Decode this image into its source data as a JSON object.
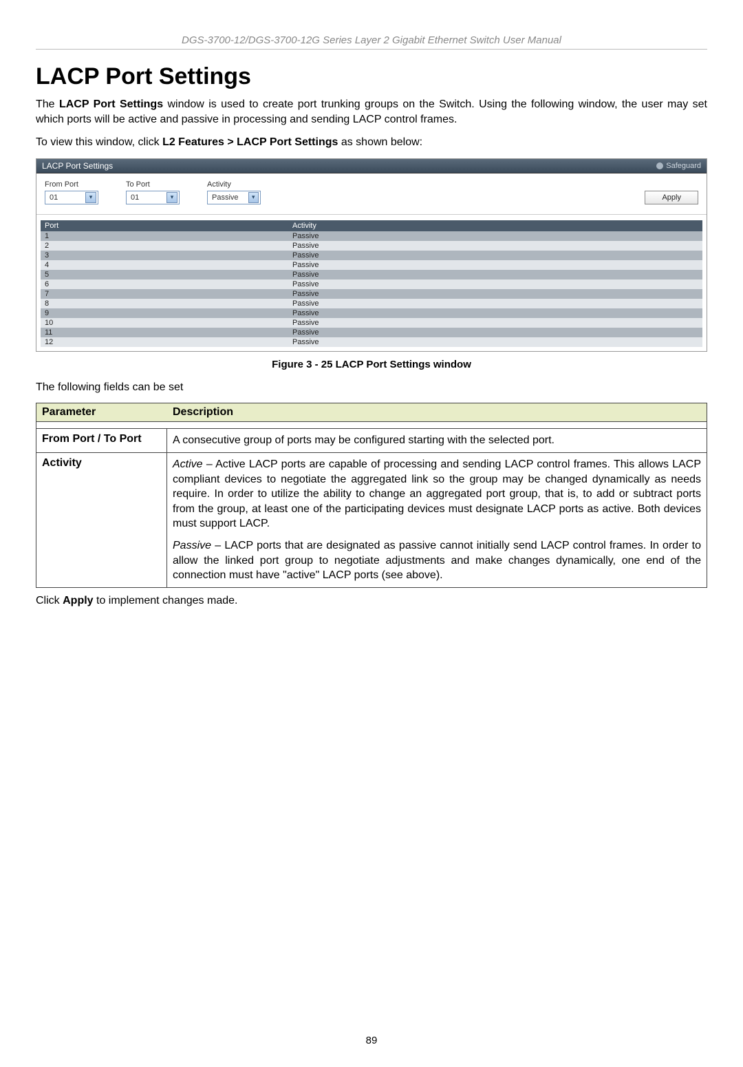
{
  "manual_header": "DGS-3700-12/DGS-3700-12G Series Layer 2 Gigabit Ethernet Switch User Manual",
  "page_title": "LACP Port Settings",
  "intro_para_prefix": "The ",
  "intro_para_bold": "LACP Port Settings",
  "intro_para_suffix": " window is used to create port trunking groups on the Switch. Using the following window, the user may set which ports will be active and passive in processing and sending LACP control frames.",
  "nav_para_prefix": "To view this window, click ",
  "nav_para_bold": "L2 Features > LACP Port Settings",
  "nav_para_suffix": " as shown below:",
  "screenshot": {
    "title": "LACP Port Settings",
    "safeguard": "Safeguard",
    "from_port_label": "From Port",
    "to_port_label": "To Port",
    "activity_label": "Activity",
    "from_port_value": "01",
    "to_port_value": "01",
    "activity_value": "Passive",
    "apply_label": "Apply",
    "th_port": "Port",
    "th_activity": "Activity",
    "rows": [
      {
        "port": "1",
        "activity": "Passive"
      },
      {
        "port": "2",
        "activity": "Passive"
      },
      {
        "port": "3",
        "activity": "Passive"
      },
      {
        "port": "4",
        "activity": "Passive"
      },
      {
        "port": "5",
        "activity": "Passive"
      },
      {
        "port": "6",
        "activity": "Passive"
      },
      {
        "port": "7",
        "activity": "Passive"
      },
      {
        "port": "8",
        "activity": "Passive"
      },
      {
        "port": "9",
        "activity": "Passive"
      },
      {
        "port": "10",
        "activity": "Passive"
      },
      {
        "port": "11",
        "activity": "Passive"
      },
      {
        "port": "12",
        "activity": "Passive"
      }
    ]
  },
  "figure_caption": "Figure 3 - 25 LACP Port Settings window",
  "following_text": "The following fields can be set",
  "param_header_left": "Parameter",
  "param_header_right": "Description",
  "param_rows": {
    "r0_left": "From Port / To Port",
    "r0_right": "A consecutive group of ports may be configured starting with the selected port.",
    "r1_left": "Activity",
    "r1_active_label": "Active",
    "r1_active_text": " – Active LACP ports are capable of processing and sending LACP control frames. This allows LACP compliant devices to negotiate the aggregated link so the group may be changed dynamically as needs require. In order to utilize the ability to change an aggregated port group, that is, to add or subtract ports from the group, at least one of the participating devices must designate LACP ports as active. Both devices must support LACP.",
    "r1_passive_label": "Passive",
    "r1_passive_text": " – LACP ports that are designated as passive cannot initially send LACP control frames. In order to allow the linked port group to negotiate adjustments and make changes dynamically, one end of the connection must have \"active\" LACP ports (see above)."
  },
  "apply_note_prefix": "Click ",
  "apply_note_bold": "Apply",
  "apply_note_suffix": " to implement changes made.",
  "page_number": "89"
}
